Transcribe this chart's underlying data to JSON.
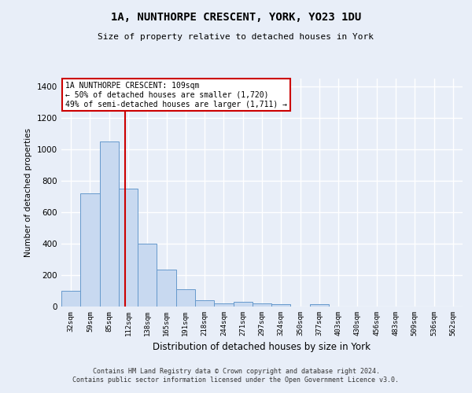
{
  "title1": "1A, NUNTHORPE CRESCENT, YORK, YO23 1DU",
  "title2": "Size of property relative to detached houses in York",
  "xlabel": "Distribution of detached houses by size in York",
  "ylabel": "Number of detached properties",
  "categories": [
    "32sqm",
    "59sqm",
    "85sqm",
    "112sqm",
    "138sqm",
    "165sqm",
    "191sqm",
    "218sqm",
    "244sqm",
    "271sqm",
    "297sqm",
    "324sqm",
    "350sqm",
    "377sqm",
    "403sqm",
    "430sqm",
    "456sqm",
    "483sqm",
    "509sqm",
    "536sqm",
    "562sqm"
  ],
  "values": [
    100,
    720,
    1050,
    750,
    400,
    235,
    110,
    40,
    22,
    28,
    22,
    15,
    0,
    15,
    0,
    0,
    0,
    0,
    0,
    0,
    0
  ],
  "bar_color": "#c8d9f0",
  "bar_edge_color": "#6699cc",
  "vline_color": "#cc0000",
  "annotation_line1": "1A NUNTHORPE CRESCENT: 109sqm",
  "annotation_line2": "← 50% of detached houses are smaller (1,720)",
  "annotation_line3": "49% of semi-detached houses are larger (1,711) →",
  "annotation_box_color": "#ffffff",
  "annotation_box_edge": "#cc0000",
  "ylim": [
    0,
    1450
  ],
  "yticks": [
    0,
    200,
    400,
    600,
    800,
    1000,
    1200,
    1400
  ],
  "footer1": "Contains HM Land Registry data © Crown copyright and database right 2024.",
  "footer2": "Contains public sector information licensed under the Open Government Licence v3.0.",
  "bg_color": "#e8eef8",
  "grid_color": "#ffffff",
  "vline_pos": 2.85
}
